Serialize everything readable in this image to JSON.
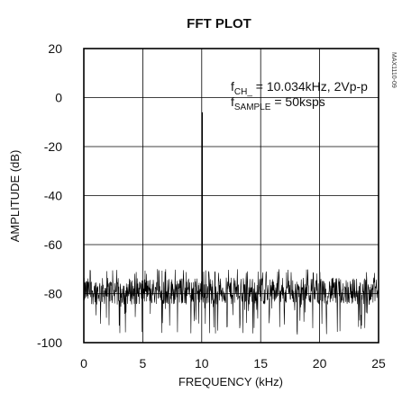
{
  "figure_id": "MAX1110-09",
  "chart_data": {
    "type": "line",
    "title": "FFT PLOT",
    "xlabel": "FREQUENCY (kHz)",
    "ylabel": "AMPLITUDE (dB)",
    "xlim": [
      0,
      25
    ],
    "ylim": [
      -100,
      20
    ],
    "x_ticks": [
      0,
      5,
      10,
      15,
      20,
      25
    ],
    "y_ticks": [
      20,
      0,
      -20,
      -40,
      -60,
      -80,
      -100
    ],
    "grid": true,
    "annotation": {
      "line1_prefix": "f",
      "line1_sub": "CH_",
      "line1_rest": " = 10.034kHz, 2Vp-p",
      "line2_prefix": "f",
      "line2_sub": "SAMPLE",
      "line2_rest": " = 50ksps"
    },
    "fundamental": {
      "frequency_khz": 10.034,
      "amplitude_db": -6
    },
    "noise_floor": {
      "mean_db": -79,
      "top_db": -70,
      "min_db": -97
    }
  }
}
